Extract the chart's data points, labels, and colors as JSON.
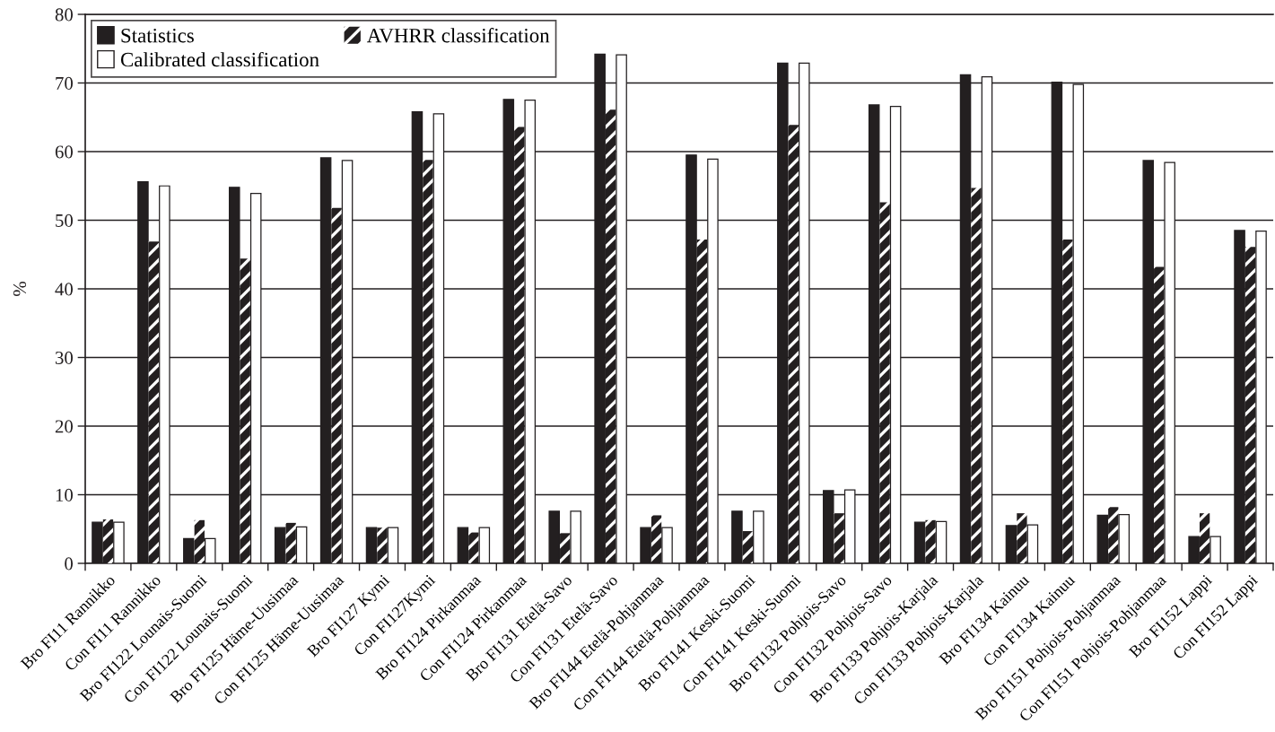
{
  "chart_data": {
    "type": "bar",
    "ylabel": "%",
    "categories": [
      "Bro FI11 Rannikko",
      "Con FI11 Rannikko",
      "Bro FI122 Lounais-Suomi",
      "Con FI122 Lounais-Suomi",
      "Bro FI125 Häme-Uusimaa",
      "Con FI125 Häme-Uusimaa",
      "Bro FI127 Kymi",
      "Con FI127Kymi",
      "Bro FI124 Pirkanmaa",
      "Con FI124 Pirkanmaa",
      "Bro FI131 Etelä-Savo",
      "Con FI131 Etelä-Savo",
      "Bro FI144 Etelä-Pohjanmaa",
      "Con FI144 Etelä-Pohjanmaa",
      "Bro FI141 Keski-Suomi",
      "Con FI141 Keski-Suomi",
      "Bro FI132 Pohjois-Savo",
      "Con FI132 Pohjois-Savo",
      "Bro FI133 Pohjois-Karjala",
      "Con FI133 Pohjois-Karjala",
      "Bro FI134 Kainuu",
      "Con FI134 Kainuu",
      "Bro FI151 Pohjois-Pohjanmaa",
      "Con FI151 Pohjois-Pohjanmaa",
      "Bro FI152 Lappi",
      "Con FI152 Lappi"
    ],
    "series": [
      {
        "name": "Statistics",
        "color": "#231f20",
        "values": [
          6.0,
          55.6,
          3.6,
          54.8,
          5.2,
          59.1,
          5.2,
          65.8,
          5.2,
          67.6,
          7.6,
          74.2,
          5.2,
          59.5,
          7.6,
          72.9,
          10.6,
          66.8,
          6.0,
          71.2,
          5.5,
          70.1,
          7.0,
          58.7,
          3.9,
          48.5
        ]
      },
      {
        "name": "AVHRR classification",
        "color": "#231f20",
        "values": [
          6.4,
          46.9,
          6.3,
          44.4,
          5.9,
          51.8,
          5.2,
          58.8,
          4.5,
          63.6,
          4.4,
          66.1,
          7.0,
          47.2,
          4.7,
          63.9,
          7.3,
          52.6,
          6.3,
          54.7,
          7.3,
          47.2,
          8.2,
          43.2,
          7.3,
          46.1
        ]
      },
      {
        "name": "Calibrated classification",
        "color": "#ffffff",
        "values": [
          6.0,
          55.0,
          3.6,
          53.9,
          5.3,
          58.7,
          5.2,
          65.5,
          5.2,
          67.5,
          7.6,
          74.1,
          5.2,
          58.9,
          7.6,
          72.9,
          10.7,
          66.6,
          6.1,
          70.9,
          5.6,
          69.8,
          7.1,
          58.4,
          3.9,
          48.4
        ]
      }
    ],
    "ylim": [
      0,
      80
    ],
    "yticks": [
      0,
      10,
      20,
      30,
      40,
      50,
      60,
      70,
      80
    ],
    "grid": "y",
    "legend": "top left"
  }
}
